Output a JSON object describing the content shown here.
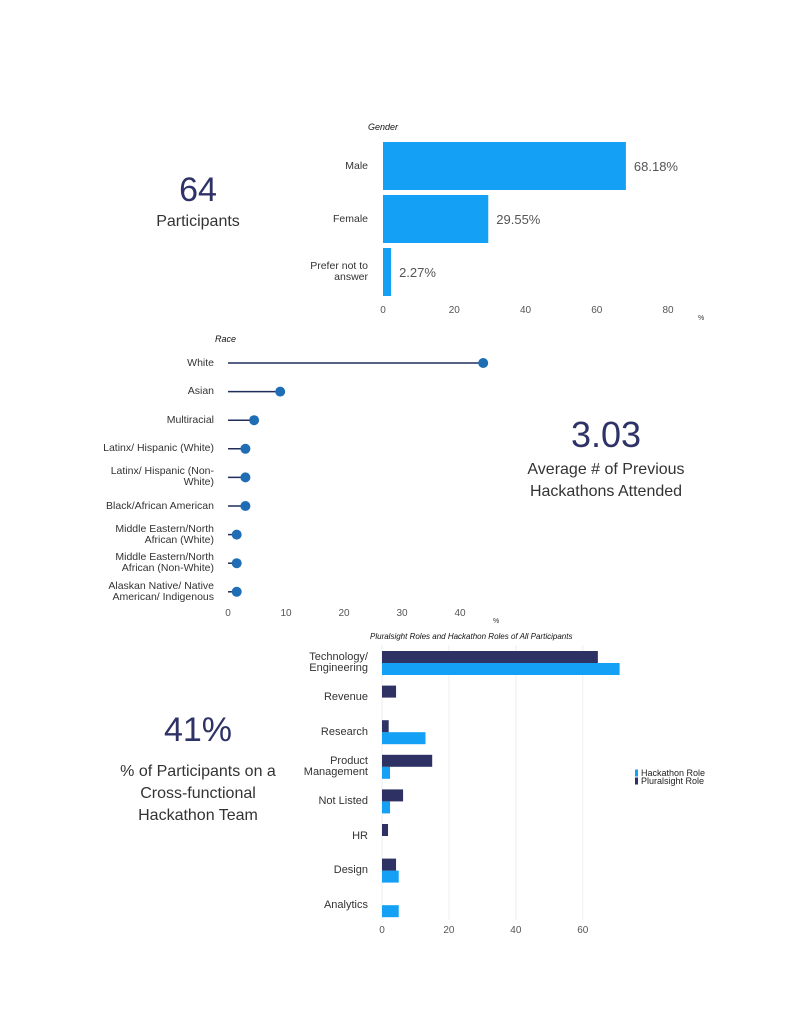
{
  "stats": [
    {
      "value": "64",
      "label": "Participants"
    },
    {
      "value": "3.03",
      "label": "Average # of Previous Hackathons Attended"
    },
    {
      "value": "41%",
      "label": "% of Participants on a Cross-functional Hackathon Team"
    }
  ],
  "chart_data": [
    {
      "type": "bar",
      "orientation": "horizontal",
      "title": "Gender",
      "categories": [
        "Male",
        "Female",
        "Prefer not to answer"
      ],
      "values": [
        68.18,
        29.55,
        2.27
      ],
      "value_labels": [
        "68.18%",
        "29.55%",
        "2.27%"
      ],
      "color": "#14a0f5",
      "xlim": [
        0,
        80
      ],
      "xticks": [
        0,
        20,
        40,
        60,
        80
      ],
      "xlabel": "%",
      "grid": false
    },
    {
      "type": "lollipop",
      "orientation": "horizontal",
      "title": "Race",
      "categories": [
        "White",
        "Asian",
        "Multiracial",
        "Latinx/ Hispanic (White)",
        "Latinx/ Hispanic (Non-White)",
        "Black/African American",
        "Middle Eastern/North African (White)",
        "Middle Eastern/North African (Non-White)",
        "Alaskan Native/ Native American/ Indigenous"
      ],
      "values": [
        44,
        9,
        4.5,
        3,
        3,
        3,
        1.5,
        1.5,
        1.5
      ],
      "color": "#1f6db5",
      "line_color": "#1f2d5a",
      "xlim": [
        0,
        45
      ],
      "xticks": [
        0,
        10,
        20,
        30,
        40
      ],
      "xlabel": "%",
      "grid": false
    },
    {
      "type": "grouped-bar",
      "orientation": "horizontal",
      "title": "Pluralsight Roles and Hackathon Roles of All Participants",
      "categories": [
        "Technology/ Engineering",
        "Revenue",
        "Research",
        "Product Management",
        "Not Listed",
        "HR",
        "Design",
        "Analytics"
      ],
      "series": [
        {
          "name": "Hackathon Role",
          "color": "#14a0f5",
          "values": [
            71,
            0,
            13,
            2.4,
            2.4,
            0,
            5,
            5
          ]
        },
        {
          "name": "Pluralsight Role",
          "color": "#2e3163",
          "values": [
            64.5,
            4.2,
            2,
            15,
            6.3,
            1.8,
            4.2,
            0
          ]
        }
      ],
      "xlim": [
        0,
        75
      ],
      "xticks": [
        0,
        20,
        40,
        60
      ],
      "grid": true,
      "legend": "right"
    }
  ]
}
